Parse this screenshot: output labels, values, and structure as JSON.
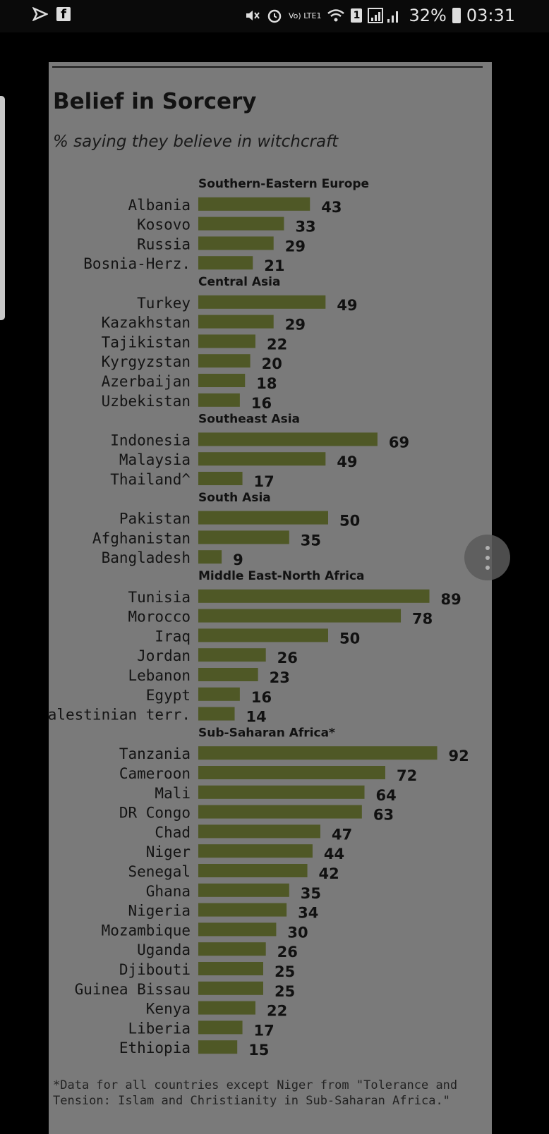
{
  "status_bar": {
    "battery": "32%",
    "time": "03:31",
    "network_label": "Vo) LTE1",
    "sim_slot": "1",
    "icons": [
      "send-icon",
      "facebook-icon",
      "mute-icon",
      "alarm-icon",
      "wifi-icon",
      "signal-icon",
      "battery-icon"
    ]
  },
  "chart": {
    "title": "Belief in Sorcery",
    "subtitle": "% saying they believe in witchcraft",
    "footnote": "*Data for all countries except Niger from \"Tolerance and Tension: Islam and Christianity in Sub-Saharan Africa.\""
  },
  "colors": {
    "bar": "#4f5826",
    "panel": "#7a7a7a",
    "text": "#121212"
  },
  "chart_data": {
    "type": "bar",
    "orientation": "horizontal",
    "title": "Belief in Sorcery",
    "subtitle": "% saying they believe in witchcraft",
    "groups": [
      {
        "name": "Southern-Eastern Europe",
        "items": [
          {
            "label": "Albania",
            "value": 43
          },
          {
            "label": "Kosovo",
            "value": 33
          },
          {
            "label": "Russia",
            "value": 29
          },
          {
            "label": "Bosnia-Herz.",
            "value": 21
          }
        ]
      },
      {
        "name": "Central Asia",
        "items": [
          {
            "label": "Turkey",
            "value": 49
          },
          {
            "label": "Kazakhstan",
            "value": 29
          },
          {
            "label": "Tajikistan",
            "value": 22
          },
          {
            "label": "Kyrgyzstan",
            "value": 20
          },
          {
            "label": "Azerbaijan",
            "value": 18
          },
          {
            "label": "Uzbekistan",
            "value": 16
          }
        ]
      },
      {
        "name": "Southeast Asia",
        "items": [
          {
            "label": "Indonesia",
            "value": 69
          },
          {
            "label": "Malaysia",
            "value": 49
          },
          {
            "label": "Thailand^",
            "value": 17
          }
        ]
      },
      {
        "name": "South Asia",
        "items": [
          {
            "label": "Pakistan",
            "value": 50
          },
          {
            "label": "Afghanistan",
            "value": 35
          },
          {
            "label": "Bangladesh",
            "value": 9
          }
        ]
      },
      {
        "name": "Middle East-North Africa",
        "items": [
          {
            "label": "Tunisia",
            "value": 89
          },
          {
            "label": "Morocco",
            "value": 78
          },
          {
            "label": "Iraq",
            "value": 50
          },
          {
            "label": "Jordan",
            "value": 26
          },
          {
            "label": "Lebanon",
            "value": 23
          },
          {
            "label": "Egypt",
            "value": 16
          },
          {
            "label": "Palestinian terr.",
            "value": 14
          }
        ]
      },
      {
        "name": "Sub-Saharan Africa*",
        "items": [
          {
            "label": "Tanzania",
            "value": 92
          },
          {
            "label": "Cameroon",
            "value": 72
          },
          {
            "label": "Mali",
            "value": 64
          },
          {
            "label": "DR Congo",
            "value": 63
          },
          {
            "label": "Chad",
            "value": 47
          },
          {
            "label": "Niger",
            "value": 44
          },
          {
            "label": "Senegal",
            "value": 42
          },
          {
            "label": "Ghana",
            "value": 35
          },
          {
            "label": "Nigeria",
            "value": 34
          },
          {
            "label": "Mozambique",
            "value": 30
          },
          {
            "label": "Uganda",
            "value": 26
          },
          {
            "label": "Djibouti",
            "value": 25
          },
          {
            "label": "Guinea Bissau",
            "value": 25
          },
          {
            "label": "Kenya",
            "value": 22
          },
          {
            "label": "Liberia",
            "value": 17
          },
          {
            "label": "Ethiopia",
            "value": 15
          }
        ]
      }
    ]
  }
}
